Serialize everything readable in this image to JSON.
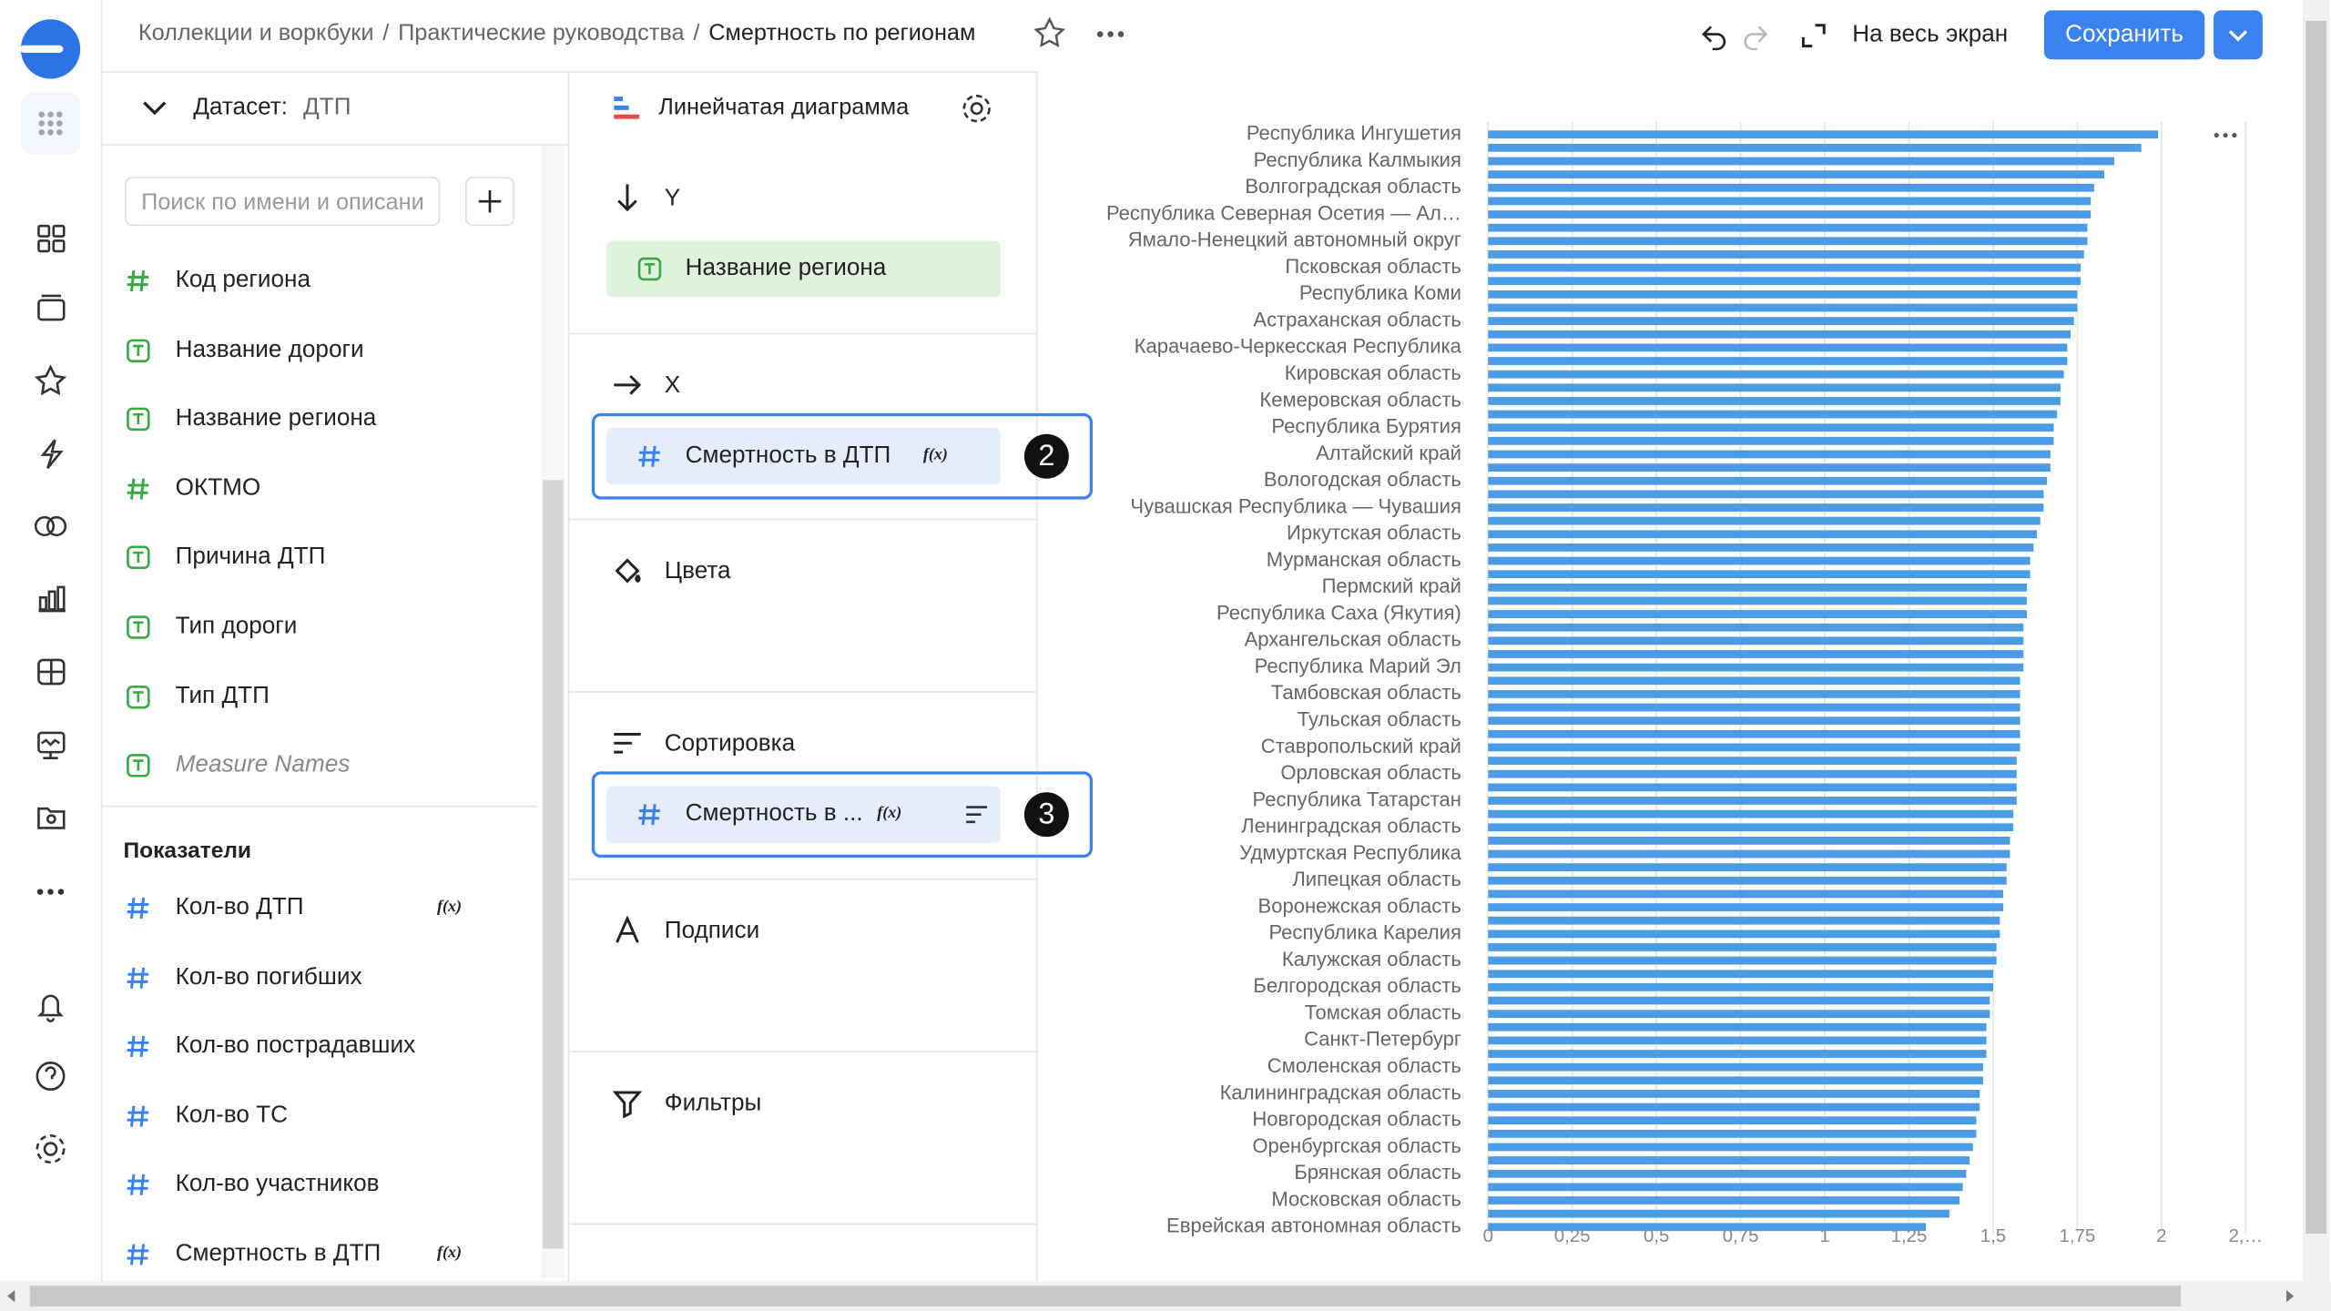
{
  "header": {
    "breadcrumbs": [
      "Коллекции и воркбуки",
      "Практические руководства",
      "Смертность по регионам"
    ],
    "separator": "/",
    "fullscreen": "На весь экран",
    "save": "Сохранить"
  },
  "dataset_panel": {
    "label": "Датасет:",
    "name": "ДТП",
    "search_placeholder": "Поиск по имени и описани",
    "dimensions": [
      {
        "name": "Код региона",
        "type": "number"
      },
      {
        "name": "Название дороги",
        "type": "text"
      },
      {
        "name": "Название региона",
        "type": "text"
      },
      {
        "name": "ОКТМО",
        "type": "number"
      },
      {
        "name": "Причина ДТП",
        "type": "text"
      },
      {
        "name": "Тип дороги",
        "type": "text"
      },
      {
        "name": "Тип ДТП",
        "type": "text"
      },
      {
        "name": "Measure Names",
        "type": "text",
        "italic": true
      }
    ],
    "measures_title": "Показатели",
    "measures": [
      {
        "name": "Кол-во ДТП",
        "type": "number",
        "formula": true
      },
      {
        "name": "Кол-во погибших",
        "type": "number"
      },
      {
        "name": "Кол-во пострадавших",
        "type": "number"
      },
      {
        "name": "Кол-во ТС",
        "type": "number"
      },
      {
        "name": "Кол-во участников",
        "type": "number"
      },
      {
        "name": "Смертность в ДТП",
        "type": "number",
        "formula": true
      }
    ],
    "formula_badge": "f(x)"
  },
  "wizard_panel": {
    "chart_type": "Линейчатая диаграмма",
    "sections": [
      {
        "title": "Y",
        "fields": [
          {
            "name": "Название региона",
            "type": "text"
          }
        ]
      },
      {
        "title": "X",
        "fields": [
          {
            "name": "Смертность в ДТП",
            "type": "number",
            "formula": true,
            "callout": 2
          }
        ]
      },
      {
        "title": "Цвета",
        "fields": []
      },
      {
        "title": "Сортировка",
        "fields": [
          {
            "name": "Смертность в ...",
            "type": "number",
            "formula": true,
            "sort": true,
            "callout": 3
          }
        ]
      },
      {
        "title": "Подписи",
        "fields": []
      },
      {
        "title": "Фильтры",
        "fields": []
      }
    ]
  },
  "chart_data": {
    "type": "bar",
    "orientation": "horizontal",
    "color": "#4b9be5",
    "grid": true,
    "categories": [
      "Республика Ингушетия",
      null,
      "Республика Калмыкия",
      null,
      "Волгоградская область",
      null,
      "Республика Северная Осетия — Ал…",
      null,
      "Ямало-Ненецкий автономный округ",
      null,
      "Псковская область",
      null,
      "Республика Коми",
      null,
      "Астраханская область",
      null,
      "Карачаево-Черкесская Республика",
      null,
      "Кировская область",
      null,
      "Кемеровская область",
      null,
      "Республика Бурятия",
      null,
      "Алтайский край",
      null,
      "Вологодская область",
      null,
      "Чувашская Республика — Чувашия",
      null,
      "Иркутская область",
      null,
      "Мурманская область",
      null,
      "Пермский край",
      null,
      "Республика Саха (Якутия)",
      null,
      "Архангельская область",
      null,
      "Республика Марий Эл",
      null,
      "Тамбовская область",
      null,
      "Тульская область",
      null,
      "Ставропольский край",
      null,
      "Орловская область",
      null,
      "Республика Татарстан",
      null,
      "Ленинградская область",
      null,
      "Удмуртская Республика",
      null,
      "Липецкая область",
      null,
      "Воронежская область",
      null,
      "Республика Карелия",
      null,
      "Калужская область",
      null,
      "Белгородская область",
      null,
      "Томская область",
      null,
      "Санкт-Петербург",
      null,
      "Смоленская область",
      null,
      "Калининградская область",
      null,
      "Новгородская область",
      null,
      "Оренбургская область",
      null,
      "Брянская область",
      null,
      "Московская область",
      null,
      "Еврейская автономная область"
    ],
    "values": [
      1.99,
      1.94,
      1.86,
      1.83,
      1.8,
      1.79,
      1.79,
      1.78,
      1.78,
      1.77,
      1.76,
      1.76,
      1.75,
      1.75,
      1.74,
      1.73,
      1.72,
      1.72,
      1.71,
      1.7,
      1.7,
      1.69,
      1.68,
      1.68,
      1.67,
      1.67,
      1.66,
      1.65,
      1.65,
      1.64,
      1.63,
      1.62,
      1.61,
      1.61,
      1.6,
      1.6,
      1.6,
      1.59,
      1.59,
      1.59,
      1.59,
      1.58,
      1.58,
      1.58,
      1.58,
      1.58,
      1.58,
      1.57,
      1.57,
      1.57,
      1.57,
      1.56,
      1.56,
      1.55,
      1.55,
      1.54,
      1.54,
      1.53,
      1.53,
      1.52,
      1.52,
      1.51,
      1.51,
      1.5,
      1.5,
      1.49,
      1.49,
      1.48,
      1.48,
      1.48,
      1.47,
      1.47,
      1.46,
      1.46,
      1.45,
      1.45,
      1.44,
      1.43,
      1.42,
      1.41,
      1.4,
      1.37,
      1.3
    ],
    "xlim": [
      0,
      2.25
    ],
    "xticks": [
      0,
      {
        "value": 0.25,
        "label": "0,25"
      },
      {
        "value": 0.5,
        "label": "0,5"
      },
      {
        "value": 0.75,
        "label": "0,75"
      },
      1,
      {
        "value": 1.25,
        "label": "1,25"
      },
      {
        "value": 1.5,
        "label": "1,5"
      },
      {
        "value": 1.75,
        "label": "1,75"
      },
      2,
      {
        "value": 2.25,
        "label": "2,…"
      }
    ]
  }
}
